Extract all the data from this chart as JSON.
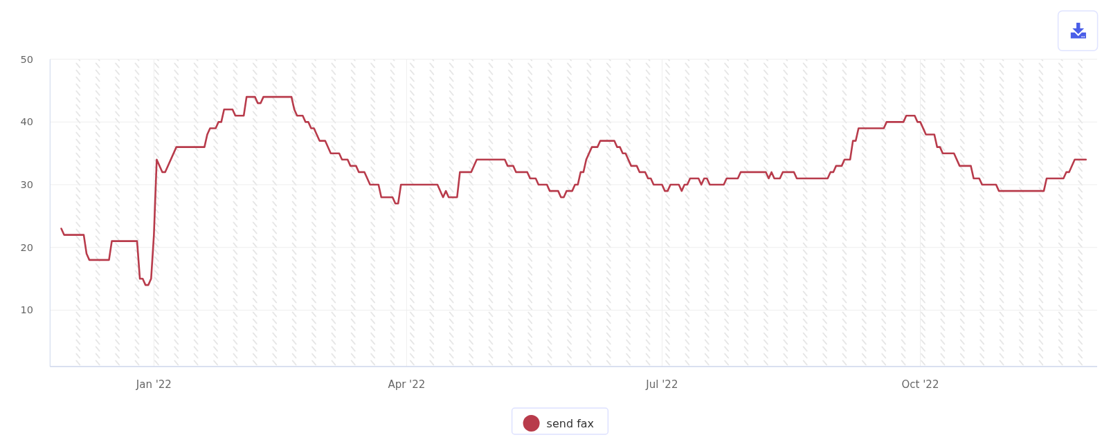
{
  "chart_data": {
    "type": "line",
    "x": [
      "2021-11-29",
      "2021-11-30",
      "2021-12-07",
      "2021-12-08",
      "2021-12-09",
      "2021-12-16",
      "2021-12-17",
      "2021-12-26",
      "2021-12-27",
      "2021-12-28",
      "2021-12-29",
      "2021-12-30",
      "2021-12-31",
      "2022-01-01",
      "2022-01-02",
      "2022-01-04",
      "2022-01-05",
      "2022-01-09",
      "2022-01-19",
      "2022-01-20",
      "2022-01-21",
      "2022-01-23",
      "2022-01-24",
      "2022-01-25",
      "2022-01-26",
      "2022-01-29",
      "2022-01-30",
      "2022-02-02",
      "2022-02-03",
      "2022-02-06",
      "2022-02-07",
      "2022-02-08",
      "2022-02-09",
      "2022-02-19",
      "2022-02-20",
      "2022-02-21",
      "2022-02-23",
      "2022-02-24",
      "2022-02-25",
      "2022-02-26",
      "2022-02-27",
      "2022-03-01",
      "2022-03-03",
      "2022-03-05",
      "2022-03-08",
      "2022-03-09",
      "2022-03-11",
      "2022-03-12",
      "2022-03-14",
      "2022-03-15",
      "2022-03-17",
      "2022-03-19",
      "2022-03-22",
      "2022-03-23",
      "2022-03-27",
      "2022-03-28",
      "2022-03-29",
      "2022-03-30",
      "2022-04-12",
      "2022-04-14",
      "2022-04-15",
      "2022-04-16",
      "2022-04-19",
      "2022-04-20",
      "2022-04-24",
      "2022-04-26",
      "2022-05-06",
      "2022-05-07",
      "2022-05-09",
      "2022-05-10",
      "2022-05-14",
      "2022-05-15",
      "2022-05-17",
      "2022-05-18",
      "2022-05-21",
      "2022-05-22",
      "2022-05-25",
      "2022-05-26",
      "2022-05-27",
      "2022-05-28",
      "2022-05-30",
      "2022-05-31",
      "2022-06-01",
      "2022-06-02",
      "2022-06-03",
      "2022-06-04",
      "2022-06-06",
      "2022-06-08",
      "2022-06-09",
      "2022-06-14",
      "2022-06-15",
      "2022-06-16",
      "2022-06-17",
      "2022-06-18",
      "2022-06-20",
      "2022-06-22",
      "2022-06-23",
      "2022-06-25",
      "2022-06-26",
      "2022-06-27",
      "2022-06-28",
      "2022-07-01",
      "2022-07-02",
      "2022-07-03",
      "2022-07-04",
      "2022-07-07",
      "2022-07-08",
      "2022-07-09",
      "2022-07-10",
      "2022-07-11",
      "2022-07-14",
      "2022-07-15",
      "2022-07-16",
      "2022-07-17",
      "2022-07-18",
      "2022-07-23",
      "2022-07-24",
      "2022-07-28",
      "2022-07-29",
      "2022-08-07",
      "2022-08-08",
      "2022-08-09",
      "2022-08-10",
      "2022-08-12",
      "2022-08-13",
      "2022-08-17",
      "2022-08-18",
      "2022-08-29",
      "2022-08-30",
      "2022-08-31",
      "2022-09-01",
      "2022-09-03",
      "2022-09-04",
      "2022-09-06",
      "2022-09-07",
      "2022-09-08",
      "2022-09-09",
      "2022-09-18",
      "2022-09-19",
      "2022-09-25",
      "2022-09-26",
      "2022-09-29",
      "2022-09-30",
      "2022-10-01",
      "2022-10-03",
      "2022-10-06",
      "2022-10-07",
      "2022-10-08",
      "2022-10-09",
      "2022-10-13",
      "2022-10-15",
      "2022-10-19",
      "2022-10-20",
      "2022-10-22",
      "2022-10-23",
      "2022-10-28",
      "2022-10-29",
      "2022-11-14",
      "2022-11-15",
      "2022-11-21",
      "2022-11-22",
      "2022-11-23",
      "2022-11-25",
      "2022-11-29"
    ],
    "series": [
      {
        "name": "send fax",
        "color": "#b83b4b",
        "values": [
          23,
          22,
          22,
          19,
          18,
          18,
          21,
          21,
          15,
          15,
          14,
          14,
          15,
          22,
          34,
          32,
          32,
          36,
          36,
          38,
          39,
          39,
          40,
          40,
          42,
          42,
          41,
          41,
          44,
          44,
          43,
          43,
          44,
          44,
          42,
          41,
          41,
          40,
          40,
          39,
          39,
          37,
          37,
          35,
          35,
          34,
          34,
          33,
          33,
          32,
          32,
          30,
          30,
          28,
          28,
          27,
          27,
          30,
          30,
          28,
          29,
          28,
          28,
          32,
          32,
          34,
          34,
          33,
          33,
          32,
          32,
          31,
          31,
          30,
          30,
          29,
          29,
          28,
          28,
          29,
          29,
          30,
          30,
          32,
          32,
          34,
          36,
          36,
          37,
          37,
          36,
          36,
          35,
          35,
          33,
          33,
          32,
          32,
          31,
          31,
          30,
          30,
          29,
          29,
          30,
          30,
          29,
          30,
          30,
          31,
          31,
          30,
          31,
          31,
          30,
          30,
          31,
          31,
          32,
          32,
          31,
          32,
          31,
          31,
          32,
          32,
          31,
          31,
          32,
          32,
          33,
          33,
          34,
          34,
          37,
          37,
          39,
          39,
          40,
          40,
          41,
          41,
          40,
          40,
          38,
          38,
          36,
          36,
          35,
          35,
          33,
          33,
          31,
          31,
          30,
          30,
          29,
          29,
          31,
          31,
          32,
          32,
          34,
          34
        ]
      }
    ],
    "xlim": [
      "2021-11-25",
      "2022-12-03"
    ],
    "ylim": [
      1,
      50
    ],
    "xticks": [
      {
        "value": "2022-01-01",
        "label": "Jan '22"
      },
      {
        "value": "2022-04-01",
        "label": "Apr '22"
      },
      {
        "value": "2022-07-01",
        "label": "Jul '22"
      },
      {
        "value": "2022-10-01",
        "label": "Oct '22"
      }
    ],
    "yticks": [
      10,
      20,
      30,
      40,
      50
    ],
    "grid": true,
    "legend": "bottom",
    "bands": [
      {
        "axis": "x",
        "from": "2021-12-04",
        "to": "2021-12-06",
        "color": "#e4e4e4"
      },
      {
        "axis": "x",
        "from": "2021-12-11",
        "to": "2021-12-13",
        "color": "#e4e4e4"
      },
      {
        "axis": "x",
        "from": "2021-12-18",
        "to": "2021-12-20",
        "color": "#e4e4e4"
      },
      {
        "axis": "x",
        "from": "2021-12-25",
        "to": "2021-12-27",
        "color": "#e4e4e4"
      },
      {
        "axis": "x",
        "from": "2022-01-01",
        "to": "2022-01-03",
        "color": "#e4e4e4"
      },
      {
        "axis": "x",
        "from": "2022-01-08",
        "to": "2022-01-10",
        "color": "#e4e4e4"
      },
      {
        "axis": "x",
        "from": "2022-01-15",
        "to": "2022-01-17",
        "color": "#e4e4e4"
      },
      {
        "axis": "x",
        "from": "2022-01-22",
        "to": "2022-01-24",
        "color": "#e4e4e4"
      },
      {
        "axis": "x",
        "from": "2022-01-29",
        "to": "2022-01-31",
        "color": "#e4e4e4"
      },
      {
        "axis": "x",
        "from": "2022-02-05",
        "to": "2022-02-07",
        "color": "#e4e4e4"
      },
      {
        "axis": "x",
        "from": "2022-02-12",
        "to": "2022-02-14",
        "color": "#e4e4e4"
      },
      {
        "axis": "x",
        "from": "2022-02-19",
        "to": "2022-02-21",
        "color": "#e4e4e4"
      },
      {
        "axis": "x",
        "from": "2022-02-26",
        "to": "2022-02-28",
        "color": "#e4e4e4"
      },
      {
        "axis": "x",
        "from": "2022-03-05",
        "to": "2022-03-07",
        "color": "#e4e4e4"
      },
      {
        "axis": "x",
        "from": "2022-03-12",
        "to": "2022-03-14",
        "color": "#e4e4e4"
      },
      {
        "axis": "x",
        "from": "2022-03-19",
        "to": "2022-03-21",
        "color": "#e4e4e4"
      },
      {
        "axis": "x",
        "from": "2022-03-26",
        "to": "2022-03-28",
        "color": "#e4e4e4"
      },
      {
        "axis": "x",
        "from": "2022-04-02",
        "to": "2022-04-04",
        "color": "#e4e4e4"
      },
      {
        "axis": "x",
        "from": "2022-04-09",
        "to": "2022-04-11",
        "color": "#e4e4e4"
      },
      {
        "axis": "x",
        "from": "2022-04-16",
        "to": "2022-04-18",
        "color": "#e4e4e4"
      },
      {
        "axis": "x",
        "from": "2022-04-23",
        "to": "2022-04-25",
        "color": "#e4e4e4"
      },
      {
        "axis": "x",
        "from": "2022-04-30",
        "to": "2022-05-02",
        "color": "#e4e4e4"
      },
      {
        "axis": "x",
        "from": "2022-05-07",
        "to": "2022-05-09",
        "color": "#e4e4e4"
      },
      {
        "axis": "x",
        "from": "2022-05-14",
        "to": "2022-05-16",
        "color": "#e4e4e4"
      },
      {
        "axis": "x",
        "from": "2022-05-21",
        "to": "2022-05-23",
        "color": "#e4e4e4"
      },
      {
        "axis": "x",
        "from": "2022-05-28",
        "to": "2022-05-30",
        "color": "#e4e4e4"
      },
      {
        "axis": "x",
        "from": "2022-06-04",
        "to": "2022-06-06",
        "color": "#e4e4e4"
      },
      {
        "axis": "x",
        "from": "2022-06-11",
        "to": "2022-06-13",
        "color": "#e4e4e4"
      },
      {
        "axis": "x",
        "from": "2022-06-18",
        "to": "2022-06-20",
        "color": "#e4e4e4"
      },
      {
        "axis": "x",
        "from": "2022-06-25",
        "to": "2022-06-27",
        "color": "#e4e4e4"
      },
      {
        "axis": "x",
        "from": "2022-07-02",
        "to": "2022-07-04",
        "color": "#e4e4e4"
      },
      {
        "axis": "x",
        "from": "2022-07-09",
        "to": "2022-07-11",
        "color": "#e4e4e4"
      },
      {
        "axis": "x",
        "from": "2022-07-16",
        "to": "2022-07-18",
        "color": "#e4e4e4"
      },
      {
        "axis": "x",
        "from": "2022-07-23",
        "to": "2022-07-25",
        "color": "#e4e4e4"
      },
      {
        "axis": "x",
        "from": "2022-07-30",
        "to": "2022-08-01",
        "color": "#e4e4e4"
      },
      {
        "axis": "x",
        "from": "2022-08-06",
        "to": "2022-08-08",
        "color": "#e4e4e4"
      },
      {
        "axis": "x",
        "from": "2022-08-13",
        "to": "2022-08-15",
        "color": "#e4e4e4"
      },
      {
        "axis": "x",
        "from": "2022-08-20",
        "to": "2022-08-22",
        "color": "#e4e4e4"
      },
      {
        "axis": "x",
        "from": "2022-08-27",
        "to": "2022-08-29",
        "color": "#e4e4e4"
      },
      {
        "axis": "x",
        "from": "2022-09-03",
        "to": "2022-09-05",
        "color": "#e4e4e4"
      },
      {
        "axis": "x",
        "from": "2022-09-10",
        "to": "2022-09-12",
        "color": "#e4e4e4"
      },
      {
        "axis": "x",
        "from": "2022-09-17",
        "to": "2022-09-19",
        "color": "#e4e4e4"
      },
      {
        "axis": "x",
        "from": "2022-09-24",
        "to": "2022-09-26",
        "color": "#e4e4e4"
      },
      {
        "axis": "x",
        "from": "2022-10-01",
        "to": "2022-10-03",
        "color": "#e4e4e4"
      },
      {
        "axis": "x",
        "from": "2022-10-08",
        "to": "2022-10-10",
        "color": "#e4e4e4"
      },
      {
        "axis": "x",
        "from": "2022-10-15",
        "to": "2022-10-17",
        "color": "#e4e4e4"
      },
      {
        "axis": "x",
        "from": "2022-10-22",
        "to": "2022-10-24",
        "color": "#e4e4e4"
      },
      {
        "axis": "x",
        "from": "2022-10-29",
        "to": "2022-10-31",
        "color": "#e4e4e4"
      },
      {
        "axis": "x",
        "from": "2022-11-05",
        "to": "2022-11-07",
        "color": "#e4e4e4"
      },
      {
        "axis": "x",
        "from": "2022-11-12",
        "to": "2022-11-14",
        "color": "#e4e4e4"
      },
      {
        "axis": "x",
        "from": "2022-11-19",
        "to": "2022-11-21",
        "color": "#e4e4e4"
      },
      {
        "axis": "x",
        "from": "2022-11-26",
        "to": "2022-11-28",
        "color": "#e4e4e4"
      }
    ]
  }
}
